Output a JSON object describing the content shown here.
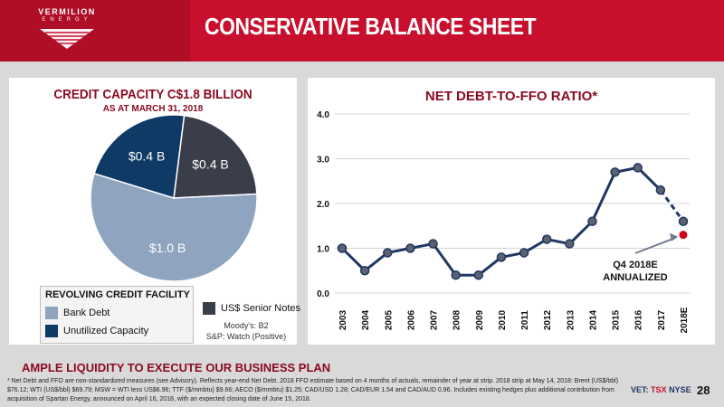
{
  "header": {
    "logo_name": "VERMILION",
    "logo_sub": "ENERGY",
    "title": "CONSERVATIVE BALANCE SHEET"
  },
  "credit": {
    "title": "CREDIT CAPACITY C$1.8 BILLION",
    "subtitle": "AS AT MARCH 31, 2018",
    "legend_title": "REVOLVING CREDIT FACILITY",
    "legend_bank": "Bank Debt",
    "legend_unutilized": "Unutilized Capacity",
    "legend_senior": "US$ Senior Notes",
    "rating_moodys": "Moody's: B2",
    "rating_sp": "S&P: Watch (Positive)"
  },
  "ratio": {
    "title": "NET DEBT-TO-FFO RATIO*",
    "annotation_line1": "Q4 2018E",
    "annotation_line2": "ANNUALIZED"
  },
  "footer": {
    "tagline": "AMPLE LIQUIDITY TO EXECUTE OUR BUSINESS PLAN",
    "footnote": "* Net Debt and FFO are non-standardized measures (see Advisory). Reflects year-end Net Debt. 2018 FFO estimate based on 4 months of actuals, remainder of year at strip. 2018 strip at May 14, 2018: Brent (US$/bbl) $76.12; WTI (US$/bbl) $69.79; MSW = WTI less US$6.96; TTF ($/mmbtu) $9.66; AECO ($/mmbtu) $1.25; CAD/USD 1.28; CAD/EUR 1.54 and CAD/AUD 0.96. Includes existing hedges plus additional contribution from acquisition of Spartan Energy, announced on April 16, 2018, with an expected closing date of June 15, 2018.",
    "exchange_vet": "VET:",
    "exchange_tsx": "TSX",
    "exchange_nyse": "NYSE",
    "page_number": "28"
  },
  "colors": {
    "brand_red": "#c8102e",
    "bank_debt": "#8fa4bf",
    "unutilized": "#0f3a66",
    "senior_notes": "#3a3d4a",
    "line": "#1f3864",
    "marker_estimate": "#d0021b"
  },
  "chart_data": [
    {
      "type": "pie",
      "title": "CREDIT CAPACITY C$1.8 BILLION",
      "subtitle": "AS AT MARCH 31, 2018",
      "slices": [
        {
          "name": "Bank Debt",
          "value": 1.0,
          "label": "$1.0 B"
        },
        {
          "name": "Unutilized Capacity",
          "value": 0.4,
          "label": "$0.4 B"
        },
        {
          "name": "US$ Senior Notes",
          "value": 0.4,
          "label": "$0.4 B"
        }
      ]
    },
    {
      "type": "line",
      "title": "NET DEBT-TO-FFO RATIO*",
      "x": [
        "2003",
        "2004",
        "2005",
        "2006",
        "2007",
        "2008",
        "2009",
        "2010",
        "2011",
        "2012",
        "2013",
        "2014",
        "2015",
        "2016",
        "2017",
        "2018E"
      ],
      "series": [
        {
          "values": [
            1.0,
            0.5,
            0.9,
            1.0,
            1.1,
            0.4,
            0.4,
            0.8,
            0.9,
            1.2,
            1.1,
            1.6,
            2.7,
            2.8,
            2.3,
            1.6
          ]
        }
      ],
      "estimate_point": {
        "x": "2018E",
        "y": 1.3,
        "label": "Q4 2018E ANNUALIZED"
      },
      "ylim": [
        0,
        4
      ],
      "yticks": [
        "0.0",
        "1.0",
        "2.0",
        "3.0",
        "4.0"
      ],
      "grid": true
    }
  ]
}
